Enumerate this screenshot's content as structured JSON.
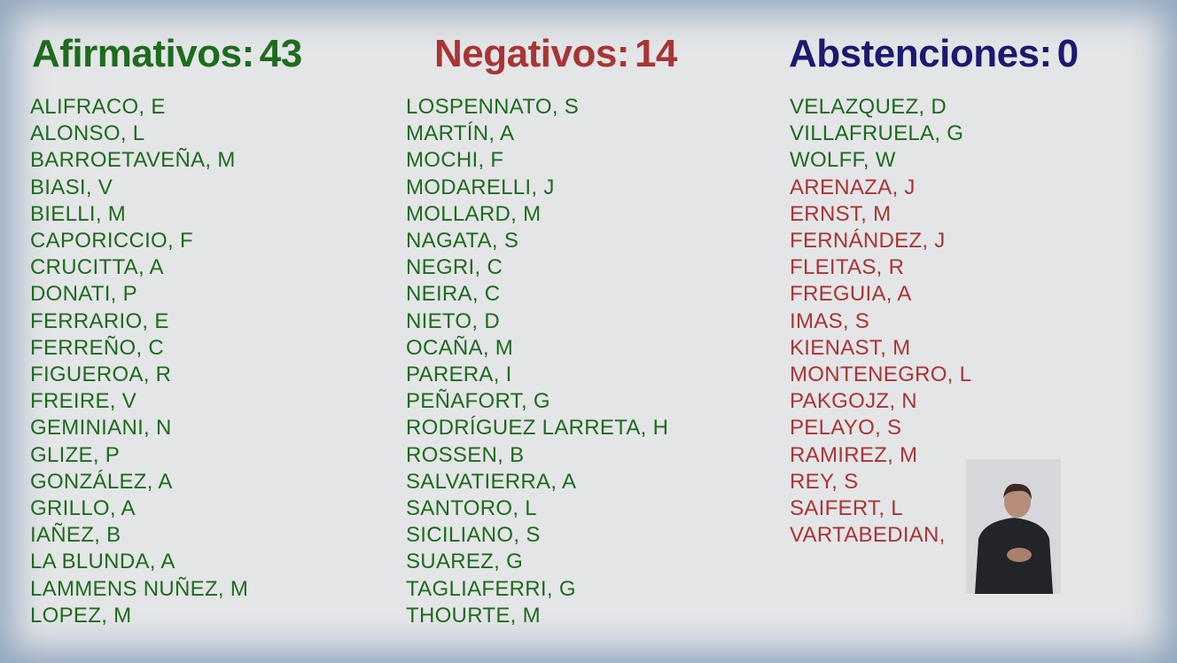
{
  "votes": [
    {
      "label": "Afirmativos:",
      "count": 43,
      "color": "#1e6b1e",
      "names": [
        "ALIFRACO, E",
        "ALONSO, L",
        "BARROETAVEÑA, M",
        "BIASI, V",
        "BIELLI, M",
        "CAPORICCIO, F",
        "CRUCITTA, A",
        "DONATI, P",
        "FERRARIO, E",
        "FERREÑO, C",
        "FIGUEROA, R",
        "FREIRE, V",
        "GEMINIANI, N",
        "GLIZE, P",
        "GONZÁLEZ, A",
        "GRILLO, A",
        "IAÑEZ, B",
        "LA BLUNDA, A",
        "LAMMENS NUÑEZ, M",
        "LOPEZ, M",
        "LOSPENNATO, S",
        "MARTÍN, A",
        "MOCHI, F",
        "MODARELLI, J",
        "MOLLARD, M",
        "NAGATA, S",
        "NEGRI, C",
        "NEIRA, C",
        "NIETO, D",
        "OCAÑA, M",
        "PARERA, I",
        "PEÑAFORT, G",
        "RODRÍGUEZ LARRETA, H",
        "ROSSEN, B",
        "SALVATIERRA, A",
        "SANTORO, L",
        "SICILIANO, S",
        "SUAREZ, G",
        "TAGLIAFERRI, G",
        "THOURTE, M",
        "VELAZQUEZ, D",
        "VILLAFRUELA, G",
        "WOLFF, W"
      ]
    },
    {
      "label": "Negativos:",
      "count": 14,
      "color": "#a83535",
      "names": [
        "ARENAZA, J",
        "ERNST, M",
        "FERNÁNDEZ, J",
        "FLEITAS, R",
        "FREGUIA, A",
        "IMAS, S",
        "KIENAST, M",
        "MONTENEGRO, L",
        "PAKGOJZ, N",
        "PELAYO, S",
        "RAMIREZ, M",
        "REY, S",
        "SAIFERT, L",
        "VARTABEDIAN,"
      ]
    },
    {
      "label": "Abstenciones:",
      "count": 0,
      "color": "#1a1a70",
      "names": []
    }
  ]
}
